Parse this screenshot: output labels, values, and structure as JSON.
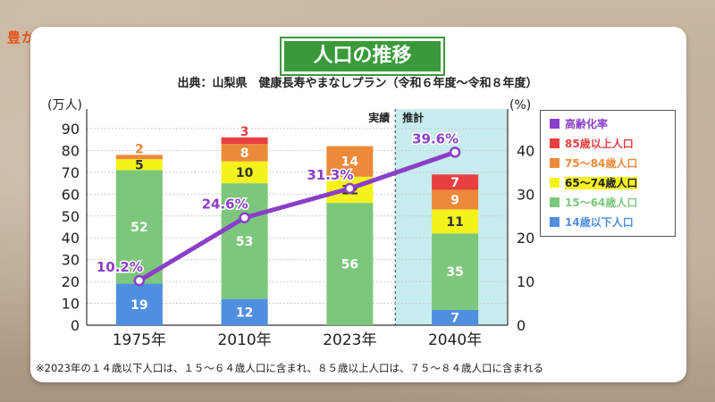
{
  "logo": {
    "text": "豊かさ共創やまなし"
  },
  "title": "人口の推移",
  "source": "出典：山梨県　健康長寿やまなしプラン（令和６年度～令和８年度）",
  "footnote": "※2023年の１４歳以下人口は、１５～６４歳人口に含まれ、８５歳以上人口は、７５～８４歳人口に含まれる",
  "chart_data": {
    "type": "bar",
    "stacked": true,
    "categories": [
      "1975年",
      "2010年",
      "2023年",
      "2040年"
    ],
    "series": [
      {
        "name": "14歳以下人口",
        "color": "#4f8fe0",
        "values": [
          19,
          12,
          null,
          7
        ]
      },
      {
        "name": "15～64歳人口",
        "color": "#7cc77c",
        "values": [
          52,
          53,
          56,
          35
        ]
      },
      {
        "name": "65～74歳人口",
        "color": "#f4f21a",
        "values": [
          5,
          10,
          12,
          11
        ]
      },
      {
        "name": "75～84歳人口",
        "color": "#ec8a3a",
        "values": [
          2,
          8,
          14,
          9
        ]
      },
      {
        "name": "85歳以上人口",
        "color": "#e84040",
        "values": [
          null,
          3,
          null,
          7
        ]
      }
    ],
    "line_series": {
      "name": "高齢化率",
      "color": "#8a3fc8",
      "values": [
        10.2,
        24.6,
        31.3,
        39.6
      ],
      "labels": [
        "10.2%",
        "24.6%",
        "31.3%",
        "39.6%"
      ]
    },
    "ylabel_left": "(万人)",
    "ylabel_right": "(%)",
    "ylim_left": [
      0,
      90
    ],
    "ylim_right": [
      0,
      45
    ],
    "yticks_left": [
      "0",
      "10",
      "20",
      "30",
      "40",
      "50",
      "60",
      "70",
      "80",
      "90"
    ],
    "yticks_right": [
      "0",
      "10",
      "20",
      "30",
      "40"
    ],
    "yticks_right_values": [
      0,
      10,
      20,
      30,
      40
    ],
    "annotations": {
      "actual": "実績",
      "projected": "推計"
    },
    "grid": true,
    "legend_position": "right"
  }
}
